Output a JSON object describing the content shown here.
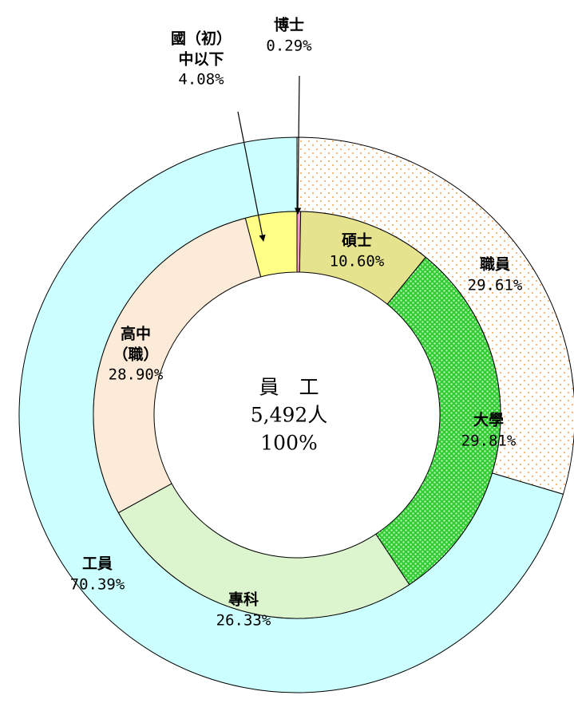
{
  "chart_data": {
    "type": "nested-donut",
    "center_labels": [
      "員　工",
      "5,492人",
      "100%"
    ],
    "outer": {
      "categories": [
        "職員",
        "工員"
      ],
      "values": [
        29.61,
        70.39
      ],
      "value_labels": [
        "29.61%",
        "70.39%"
      ],
      "colors": [
        "#f5a04a",
        "#ccffff"
      ],
      "fill_styles": [
        "dotted",
        "solid"
      ]
    },
    "inner": {
      "categories": [
        "博士",
        "碩士",
        "大學",
        "專科",
        "高中\n（職）",
        "國（初）\n中以下"
      ],
      "values": [
        0.29,
        10.6,
        29.81,
        26.33,
        28.9,
        4.08
      ],
      "value_labels": [
        "0.29%",
        "10.60%",
        "29.81%",
        "26.33%",
        "28.90%",
        "4.08%"
      ],
      "colors": [
        "#ff99cc",
        "#e6e38f",
        "#33cc33",
        "#ddf5cf",
        "#fcebd8",
        "#ffff88"
      ],
      "fill_styles": [
        "solid",
        "solid",
        "dotted",
        "solid",
        "solid",
        "solid"
      ]
    }
  }
}
